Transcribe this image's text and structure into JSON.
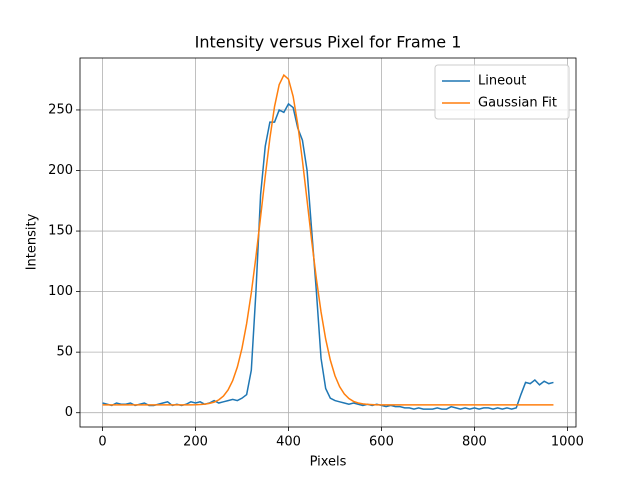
{
  "chart_data": {
    "type": "line",
    "title": "Intensity versus Pixel for Frame 1",
    "xlabel": "Pixels",
    "ylabel": "Intensity",
    "x": [
      0,
      10,
      20,
      30,
      40,
      50,
      60,
      70,
      80,
      90,
      100,
      110,
      120,
      130,
      140,
      150,
      160,
      170,
      180,
      190,
      200,
      210,
      220,
      230,
      240,
      250,
      260,
      270,
      280,
      290,
      300,
      310,
      320,
      330,
      340,
      350,
      360,
      370,
      380,
      390,
      400,
      410,
      420,
      430,
      440,
      450,
      460,
      470,
      480,
      490,
      500,
      510,
      520,
      530,
      540,
      550,
      560,
      570,
      580,
      590,
      600,
      610,
      620,
      630,
      640,
      650,
      660,
      670,
      680,
      690,
      700,
      710,
      720,
      730,
      740,
      750,
      760,
      770,
      780,
      790,
      800,
      810,
      820,
      830,
      840,
      850,
      860,
      870,
      880,
      890,
      900,
      910,
      920,
      930,
      940,
      950,
      960,
      970
    ],
    "series": [
      {
        "name": "Lineout",
        "color": "#1f77b4",
        "values": [
          8,
          7,
          6,
          8,
          7,
          7,
          8,
          6,
          7,
          8,
          6,
          6,
          7,
          8,
          9,
          6,
          7,
          6,
          7,
          9,
          8,
          9,
          7,
          8,
          10,
          8,
          9,
          10,
          11,
          10,
          12,
          15,
          35,
          100,
          180,
          220,
          240,
          240,
          250,
          248,
          255,
          252,
          235,
          225,
          200,
          150,
          100,
          45,
          20,
          12,
          10,
          9,
          8,
          7,
          8,
          7,
          6,
          7,
          6,
          7,
          6,
          5,
          6,
          5,
          5,
          4,
          4,
          3,
          4,
          3,
          3,
          3,
          4,
          3,
          3,
          5,
          4,
          3,
          4,
          3,
          4,
          3,
          4,
          4,
          3,
          4,
          3,
          4,
          3,
          4,
          15,
          25,
          24,
          27,
          23,
          26,
          24,
          25
        ]
      },
      {
        "name": "Gaussian Fit",
        "color": "#ff7f0e",
        "values": [
          6.5,
          6.5,
          6.5,
          6.5,
          6.5,
          6.5,
          6.5,
          6.5,
          6.5,
          6.5,
          6.5,
          6.5,
          6.5,
          6.5,
          6.5,
          6.5,
          6.5,
          6.5,
          6.5,
          6.5,
          6.6,
          6.8,
          7.1,
          7.7,
          8.7,
          10.6,
          13.7,
          18.8,
          26.5,
          37.7,
          53.3,
          73.7,
          99.0,
          128.9,
          161.7,
          195.2,
          226.7,
          252.8,
          270.9,
          278.8,
          275.4,
          261.2,
          237.9,
          208.2,
          175.2,
          141.7,
          110.5,
          83.3,
          60.8,
          43.4,
          30.5,
          21.5,
          15.5,
          11.7,
          9.3,
          8.0,
          7.3,
          6.9,
          6.7,
          6.5,
          6.5,
          6.5,
          6.5,
          6.5,
          6.5,
          6.5,
          6.5,
          6.5,
          6.5,
          6.5,
          6.5,
          6.5,
          6.5,
          6.5,
          6.5,
          6.5,
          6.5,
          6.5,
          6.5,
          6.5,
          6.5,
          6.5,
          6.5,
          6.5,
          6.5,
          6.5,
          6.5,
          6.5,
          6.5,
          6.5,
          6.5,
          6.5,
          6.5,
          6.5,
          6.5,
          6.5,
          6.5,
          6.5
        ]
      }
    ],
    "xlim": [
      -48.5,
      1018.5
    ],
    "xticks": [
      0,
      200,
      400,
      600,
      800,
      1000
    ],
    "ylim": [
      -11.8,
      292.9
    ],
    "yticks": [
      0,
      50,
      100,
      150,
      200,
      250
    ],
    "grid": true,
    "legend": "upper right"
  }
}
